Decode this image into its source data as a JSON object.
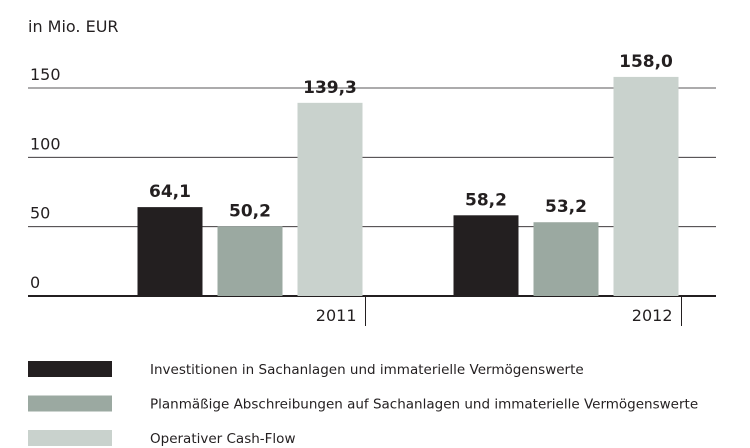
{
  "chart_data": {
    "type": "bar",
    "unit_label": "in Mio. EUR",
    "categories": [
      "2011",
      "2012"
    ],
    "series": [
      {
        "name": "Investitionen in Sachanlagen und immaterielle Vermögenswerte",
        "color": "#231f20",
        "values": [
          64.1,
          58.2
        ],
        "value_labels": [
          "64,1",
          "58,2"
        ]
      },
      {
        "name": "Planmäßige Abschreibungen auf Sachanlagen und immaterielle Vermögenswerte",
        "color": "#9ba9a1",
        "values": [
          50.2,
          53.2
        ],
        "value_labels": [
          "50,2",
          "53,2"
        ]
      },
      {
        "name": "Operativer Cash-Flow",
        "color": "#c9d2cd",
        "values": [
          139.3,
          158.0
        ],
        "value_labels": [
          "139,3",
          "158,0"
        ]
      }
    ],
    "ylim": [
      0,
      150
    ],
    "yticks": [
      0,
      50,
      100,
      150
    ],
    "grid": true
  }
}
